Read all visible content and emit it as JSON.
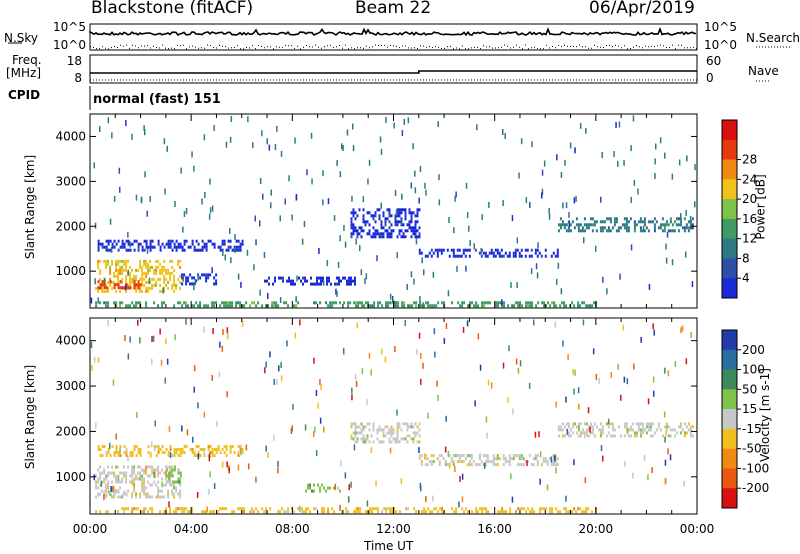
{
  "header": {
    "title": "Blackstone (fitACF)",
    "beam": "Beam 22",
    "date": "06/Apr/2019"
  },
  "sky_panel": {
    "left_label": "N.Sky",
    "right_label": "N.Search",
    "top_tick": "10^5",
    "bottom_tick": "10^0",
    "right_top_tick": "10^5",
    "right_bottom_tick": "10^0"
  },
  "freq_panel": {
    "left_label_line1": "Freq.",
    "left_label_line2": "[MHz]",
    "left_ticks": [
      "18",
      "8"
    ],
    "right_ticks": [
      "60",
      "0"
    ],
    "right_label": "Nave"
  },
  "cpid": {
    "label": "CPID",
    "mode_text": "normal (fast) 151"
  },
  "time_axis": {
    "label": "Time UT",
    "ticks": [
      "00:00",
      "04:00",
      "08:00",
      "12:00",
      "16:00",
      "20:00",
      "00:00"
    ]
  },
  "range_axis": {
    "label": "Slant Range [km]",
    "ticks": [
      "1000",
      "2000",
      "3000",
      "4000"
    ]
  },
  "power_colorbar": {
    "label": "Power [dB]",
    "ticks": [
      "4",
      "8",
      "12",
      "16",
      "20",
      "24",
      "28"
    ],
    "colors": [
      "#1a2bd6",
      "#2e4fa8",
      "#2d7a86",
      "#3f9a63",
      "#7ec24a",
      "#f1c21b",
      "#f08a12",
      "#e53a10",
      "#d70f0f"
    ]
  },
  "velocity_colorbar": {
    "label": "Velocity [m s-1]",
    "ticks": [
      "200",
      "100",
      "50",
      "15",
      "-15",
      "-50",
      "-100",
      "-200"
    ],
    "colors": [
      "#1f3ca8",
      "#2d6ea0",
      "#3c8a5a",
      "#7ec24a",
      "#c8c8c8",
      "#f0c020",
      "#f08a12",
      "#e85a10",
      "#d81010"
    ]
  },
  "chart_data": {
    "type": "heatmap",
    "x_range_hours": [
      0,
      24
    ],
    "y_range_km": [
      180,
      4500
    ],
    "power_patches": [
      {
        "t0": 0.2,
        "t1": 3.6,
        "r0": 560,
        "r1": 1250,
        "level": 5
      },
      {
        "t0": 0.3,
        "t1": 2.0,
        "r0": 620,
        "r1": 800,
        "level": 7
      },
      {
        "t0": 0.3,
        "t1": 6.0,
        "r0": 1450,
        "r1": 1700,
        "level": 0
      },
      {
        "t0": 3.6,
        "t1": 5.0,
        "r0": 700,
        "r1": 950,
        "level": 0
      },
      {
        "t0": 6.8,
        "t1": 10.5,
        "r0": 720,
        "r1": 880,
        "level": 0
      },
      {
        "t0": 10.3,
        "t1": 13.0,
        "r0": 1750,
        "r1": 2400,
        "level": 0
      },
      {
        "t0": 13.0,
        "t1": 18.5,
        "r0": 1300,
        "r1": 1500,
        "level": 0
      },
      {
        "t0": 18.5,
        "t1": 23.8,
        "r0": 1900,
        "r1": 2200,
        "level": 2
      },
      {
        "t0": 0.2,
        "t1": 20.0,
        "r0": 200,
        "r1": 330,
        "level": 3
      }
    ],
    "velocity_patches": [
      {
        "t0": 0.2,
        "t1": 3.6,
        "r0": 560,
        "r1": 1250,
        "level": 4
      },
      {
        "t0": 0.3,
        "t1": 1.5,
        "r0": 600,
        "r1": 700,
        "level": 4
      },
      {
        "t0": 3.0,
        "t1": 3.6,
        "r0": 900,
        "r1": 1250,
        "level": 3
      },
      {
        "t0": 0.3,
        "t1": 6.0,
        "r0": 1450,
        "r1": 1700,
        "level": 5
      },
      {
        "t0": 8.5,
        "t1": 10.0,
        "r0": 700,
        "r1": 850,
        "level": 3
      },
      {
        "t0": 10.3,
        "t1": 13.0,
        "r0": 1750,
        "r1": 2200,
        "level": 4
      },
      {
        "t0": 13.0,
        "t1": 18.5,
        "r0": 1300,
        "r1": 1500,
        "level": 4
      },
      {
        "t0": 18.5,
        "t1": 23.8,
        "r0": 1900,
        "r1": 2200,
        "level": 4
      },
      {
        "t0": 0.2,
        "t1": 20.0,
        "r0": 200,
        "r1": 330,
        "level": 5
      }
    ]
  }
}
